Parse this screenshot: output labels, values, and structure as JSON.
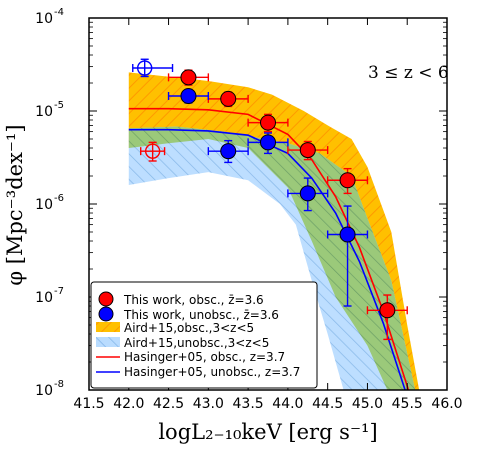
{
  "chart_data": {
    "type": "scatter",
    "ylabel": "φ [Mpc⁻³dex⁻¹]",
    "xlabel": "logL₂₋₁₀keV [erg s⁻¹]",
    "annotation": "3 ≤ z < 6",
    "xlim": [
      41.5,
      46.0
    ],
    "ylim_log10": [
      -8,
      -4
    ],
    "y_scale": "log",
    "legend_placement": "lower-left",
    "x_ticks": [
      "41.5",
      "42.0",
      "42.5",
      "43.0",
      "43.5",
      "44.0",
      "44.5",
      "45.0",
      "45.5",
      "46.0"
    ],
    "y_ticks": [
      {
        "base": "10",
        "exp": "-8"
      },
      {
        "base": "10",
        "exp": "-7"
      },
      {
        "base": "10",
        "exp": "-6"
      },
      {
        "base": "10",
        "exp": "-5"
      },
      {
        "base": "10",
        "exp": "-4"
      }
    ],
    "series": [
      {
        "name": "This work, obsc., z̄=3.6",
        "color": "#ff0000",
        "kind": "points",
        "points": [
          {
            "x": 42.75,
            "xlo": 42.5,
            "xhi": 43.0,
            "y": 2.3e-05,
            "ylo": 1.9e-05,
            "yhi": 2.75e-05
          },
          {
            "x": 43.25,
            "xlo": 43.0,
            "xhi": 43.5,
            "y": 1.35e-05,
            "ylo": 1.12e-05,
            "yhi": 1.6e-05
          },
          {
            "x": 43.75,
            "xlo": 43.5,
            "xhi": 44.0,
            "y": 7.5e-06,
            "ylo": 6e-06,
            "yhi": 9.2e-06
          },
          {
            "x": 44.25,
            "xlo": 44.0,
            "xhi": 44.5,
            "y": 3.8e-06,
            "ylo": 3e-06,
            "yhi": 4.7e-06
          },
          {
            "x": 44.75,
            "xlo": 44.5,
            "xhi": 45.0,
            "y": 1.8e-06,
            "ylo": 1.3e-06,
            "yhi": 2.4e-06
          },
          {
            "x": 45.25,
            "xlo": 45.0,
            "xhi": 45.5,
            "y": 7.2e-08,
            "ylo": 3.5e-08,
            "yhi": 1.05e-07
          }
        ],
        "open_points": [
          {
            "x": 42.3,
            "xlo": 42.15,
            "xhi": 42.45,
            "y": 3.7e-06,
            "ylo": 2.9e-06,
            "yhi": 4.6e-06
          }
        ]
      },
      {
        "name": "This work, unobsc., z̄=3.6",
        "color": "#0000ff",
        "kind": "points",
        "points": [
          {
            "x": 42.75,
            "xlo": 42.5,
            "xhi": 43.0,
            "y": 1.45e-05,
            "ylo": 1.22e-05,
            "yhi": 1.7e-05
          },
          {
            "x": 43.25,
            "xlo": 43.0,
            "xhi": 43.5,
            "y": 3.7e-06,
            "ylo": 2.8e-06,
            "yhi": 4.8e-06
          },
          {
            "x": 43.75,
            "xlo": 43.5,
            "xhi": 44.0,
            "y": 4.6e-06,
            "ylo": 3.5e-06,
            "yhi": 5.8e-06
          },
          {
            "x": 44.25,
            "xlo": 44.0,
            "xhi": 44.5,
            "y": 1.3e-06,
            "ylo": 8.5e-07,
            "yhi": 1.9e-06
          },
          {
            "x": 44.75,
            "xlo": 44.5,
            "xhi": 45.0,
            "y": 4.7e-07,
            "ylo": 8e-08,
            "yhi": 9.5e-07
          }
        ],
        "open_points": [
          {
            "x": 42.2,
            "xlo": 42.05,
            "xhi": 42.55,
            "y": 2.9e-05,
            "ylo": 2.35e-05,
            "yhi": 3.6e-05
          }
        ]
      },
      {
        "name": "Aird+15,obsc.,3<z<5",
        "color": "#ffc000",
        "kind": "band",
        "upper": [
          [
            42.0,
            2.6e-05
          ],
          [
            43.0,
            2.1e-05
          ],
          [
            43.5,
            1.8e-05
          ],
          [
            43.8,
            1.5e-05
          ],
          [
            44.2,
            1e-05
          ],
          [
            44.5,
            7e-06
          ],
          [
            44.8,
            5e-06
          ],
          [
            45.0,
            2.5e-06
          ],
          [
            45.3,
            5e-07
          ],
          [
            45.5,
            5e-08
          ],
          [
            45.65,
            1e-08
          ]
        ],
        "lower": [
          [
            42.0,
            4e-06
          ],
          [
            42.5,
            4.5e-06
          ],
          [
            43.0,
            5e-06
          ],
          [
            43.5,
            4e-06
          ],
          [
            44.0,
            1.5e-06
          ],
          [
            44.3,
            4e-07
          ],
          [
            44.6,
            1e-07
          ],
          [
            45.0,
            3e-08
          ],
          [
            45.25,
            1e-08
          ]
        ]
      },
      {
        "name": "Aird+15,unobsc.,3<z<5",
        "color": "#99ccff",
        "kind": "band",
        "upper": [
          [
            42.0,
            6.5e-06
          ],
          [
            42.6,
            6.8e-06
          ],
          [
            43.2,
            6e-06
          ],
          [
            43.6,
            5.2e-06
          ],
          [
            44.0,
            4.5e-06
          ],
          [
            44.4,
            3.5e-06
          ],
          [
            44.8,
            2e-06
          ],
          [
            45.0,
            7e-07
          ],
          [
            45.3,
            1.5e-07
          ],
          [
            45.6,
            1e-08
          ]
        ],
        "lower": [
          [
            42.0,
            1.6e-06
          ],
          [
            42.5,
            1.9e-06
          ],
          [
            43.0,
            2.2e-06
          ],
          [
            43.5,
            1.8e-06
          ],
          [
            43.9,
            1e-06
          ],
          [
            44.1,
            6e-07
          ],
          [
            44.3,
            1.5e-07
          ],
          [
            44.5,
            4e-08
          ],
          [
            44.7,
            1e-08
          ]
        ]
      },
      {
        "name": "Hasinger+05, obsc., z=3.7",
        "color": "#ff0000",
        "kind": "line",
        "xy": [
          [
            42.0,
            1.06e-05
          ],
          [
            42.5,
            1.06e-05
          ],
          [
            43.0,
            1.03e-05
          ],
          [
            43.5,
            9.2e-06
          ],
          [
            44.0,
            5.6e-06
          ],
          [
            44.3,
            3e-06
          ],
          [
            44.6,
            1.2e-06
          ],
          [
            44.9,
            3.4e-07
          ],
          [
            45.2,
            7e-08
          ],
          [
            45.5,
            1.1e-08
          ],
          [
            45.55,
            8e-09
          ]
        ]
      },
      {
        "name": "Hasinger+05, unobsc., z=3.7",
        "color": "#0000ff",
        "kind": "line",
        "xy": [
          [
            42.0,
            6.3e-06
          ],
          [
            42.5,
            6.3e-06
          ],
          [
            43.0,
            6.1e-06
          ],
          [
            43.5,
            5.5e-06
          ],
          [
            44.0,
            3.5e-06
          ],
          [
            44.3,
            1.9e-06
          ],
          [
            44.6,
            8e-07
          ],
          [
            44.9,
            2.4e-07
          ],
          [
            45.2,
            5.2e-08
          ],
          [
            45.5,
            8.5e-09
          ]
        ]
      }
    ]
  }
}
